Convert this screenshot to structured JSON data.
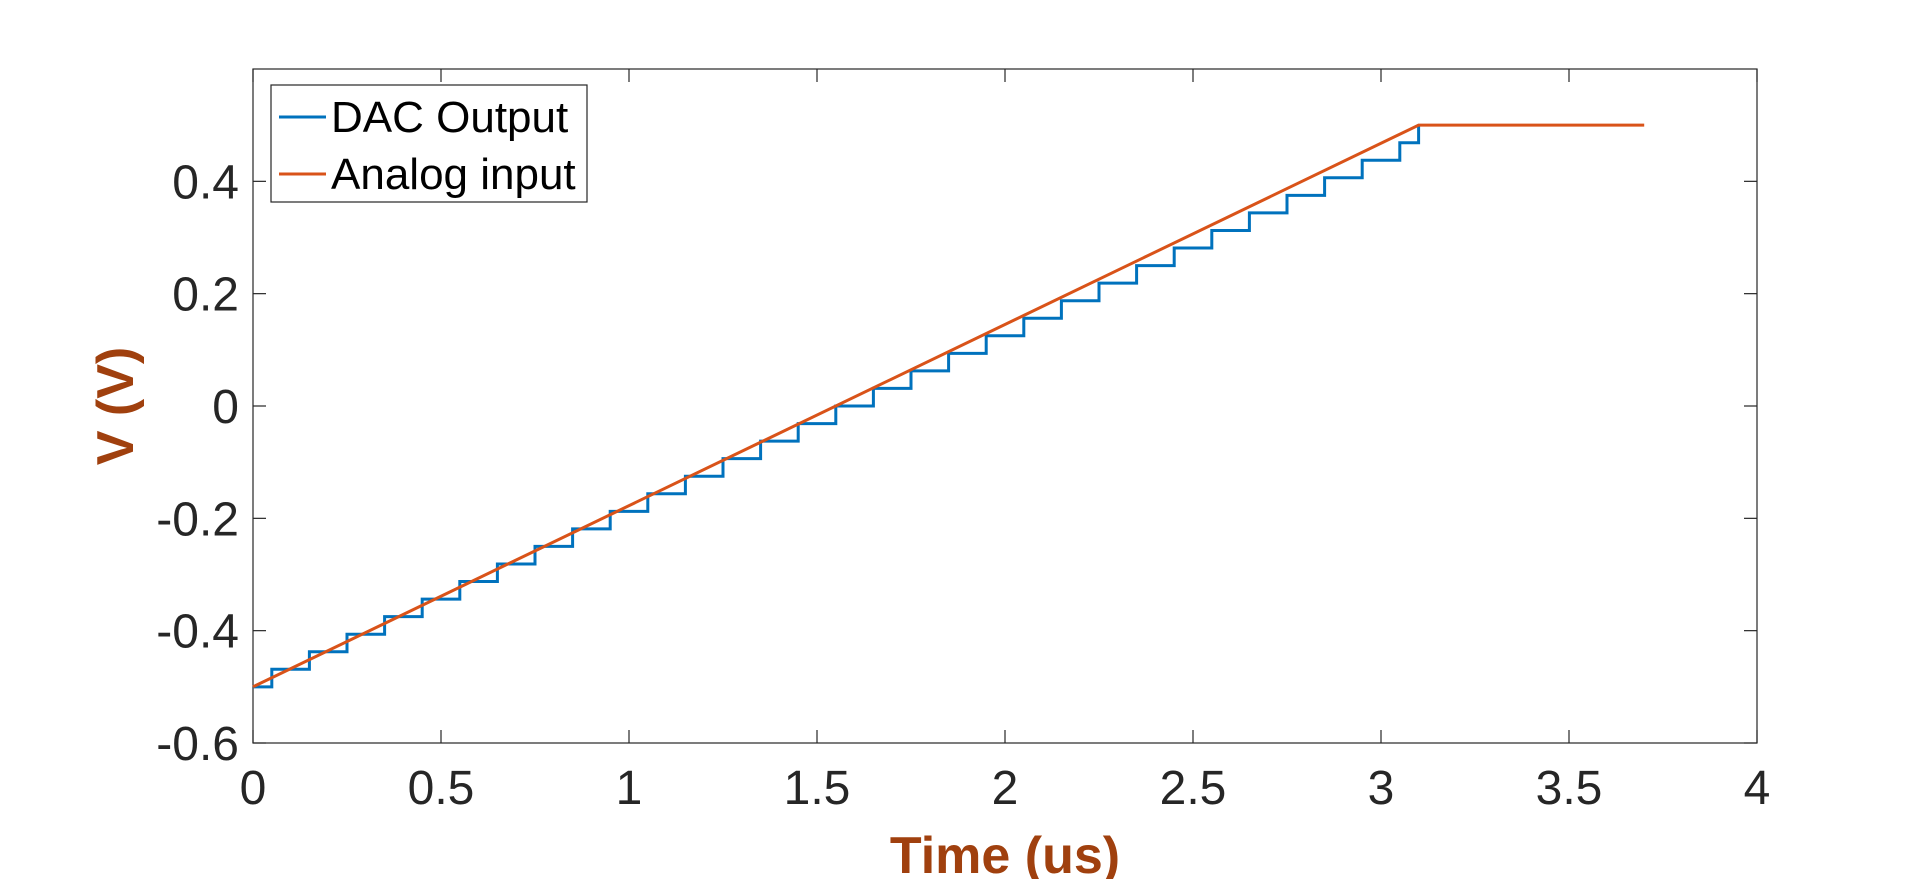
{
  "chart_data": {
    "type": "line",
    "title": "",
    "xlabel": "Time (us)",
    "ylabel": "V (V)",
    "xlim": [
      0,
      4
    ],
    "ylim": [
      -0.6,
      0.6
    ],
    "xticks": [
      0,
      0.5,
      1,
      1.5,
      2,
      2.5,
      3,
      3.5,
      4
    ],
    "xtick_labels": [
      "0",
      "0.5",
      "1",
      "1.5",
      "2",
      "2.5",
      "3",
      "3.5",
      "4"
    ],
    "yticks": [
      -0.6,
      -0.4,
      -0.2,
      0,
      0.2,
      0.4
    ],
    "ytick_labels": [
      "-0.6",
      "-0.4",
      "-0.2",
      "0",
      "0.2",
      "0.4"
    ],
    "grid": false,
    "legend_position": "top-left",
    "series": [
      {
        "name": "DAC Output",
        "style": "step",
        "color": "#0072bd",
        "step_edges_x": [
          0,
          0.05,
          0.15,
          0.25,
          0.35,
          0.45,
          0.55,
          0.65,
          0.75,
          0.85,
          0.95,
          1.05,
          1.15,
          1.25,
          1.35,
          1.45,
          1.55,
          1.65,
          1.75,
          1.85,
          1.95,
          2.05,
          2.15,
          2.25,
          2.35,
          2.45,
          2.55,
          2.65,
          2.75,
          2.85,
          2.95,
          3.05,
          3.1
        ],
        "step_levels_y": [
          -0.5,
          -0.4688,
          -0.4375,
          -0.4063,
          -0.375,
          -0.3438,
          -0.3125,
          -0.2813,
          -0.25,
          -0.2188,
          -0.1875,
          -0.1563,
          -0.125,
          -0.0938,
          -0.0625,
          -0.0313,
          0.0,
          0.0313,
          0.0625,
          0.0938,
          0.125,
          0.1563,
          0.1875,
          0.2188,
          0.25,
          0.2813,
          0.3125,
          0.3438,
          0.375,
          0.4063,
          0.4375,
          0.4688,
          0.5
        ]
      },
      {
        "name": "Analog input",
        "style": "line",
        "color": "#d95319",
        "x": [
          0,
          3.1,
          3.7
        ],
        "y": [
          -0.5,
          0.5,
          0.5
        ]
      }
    ]
  }
}
